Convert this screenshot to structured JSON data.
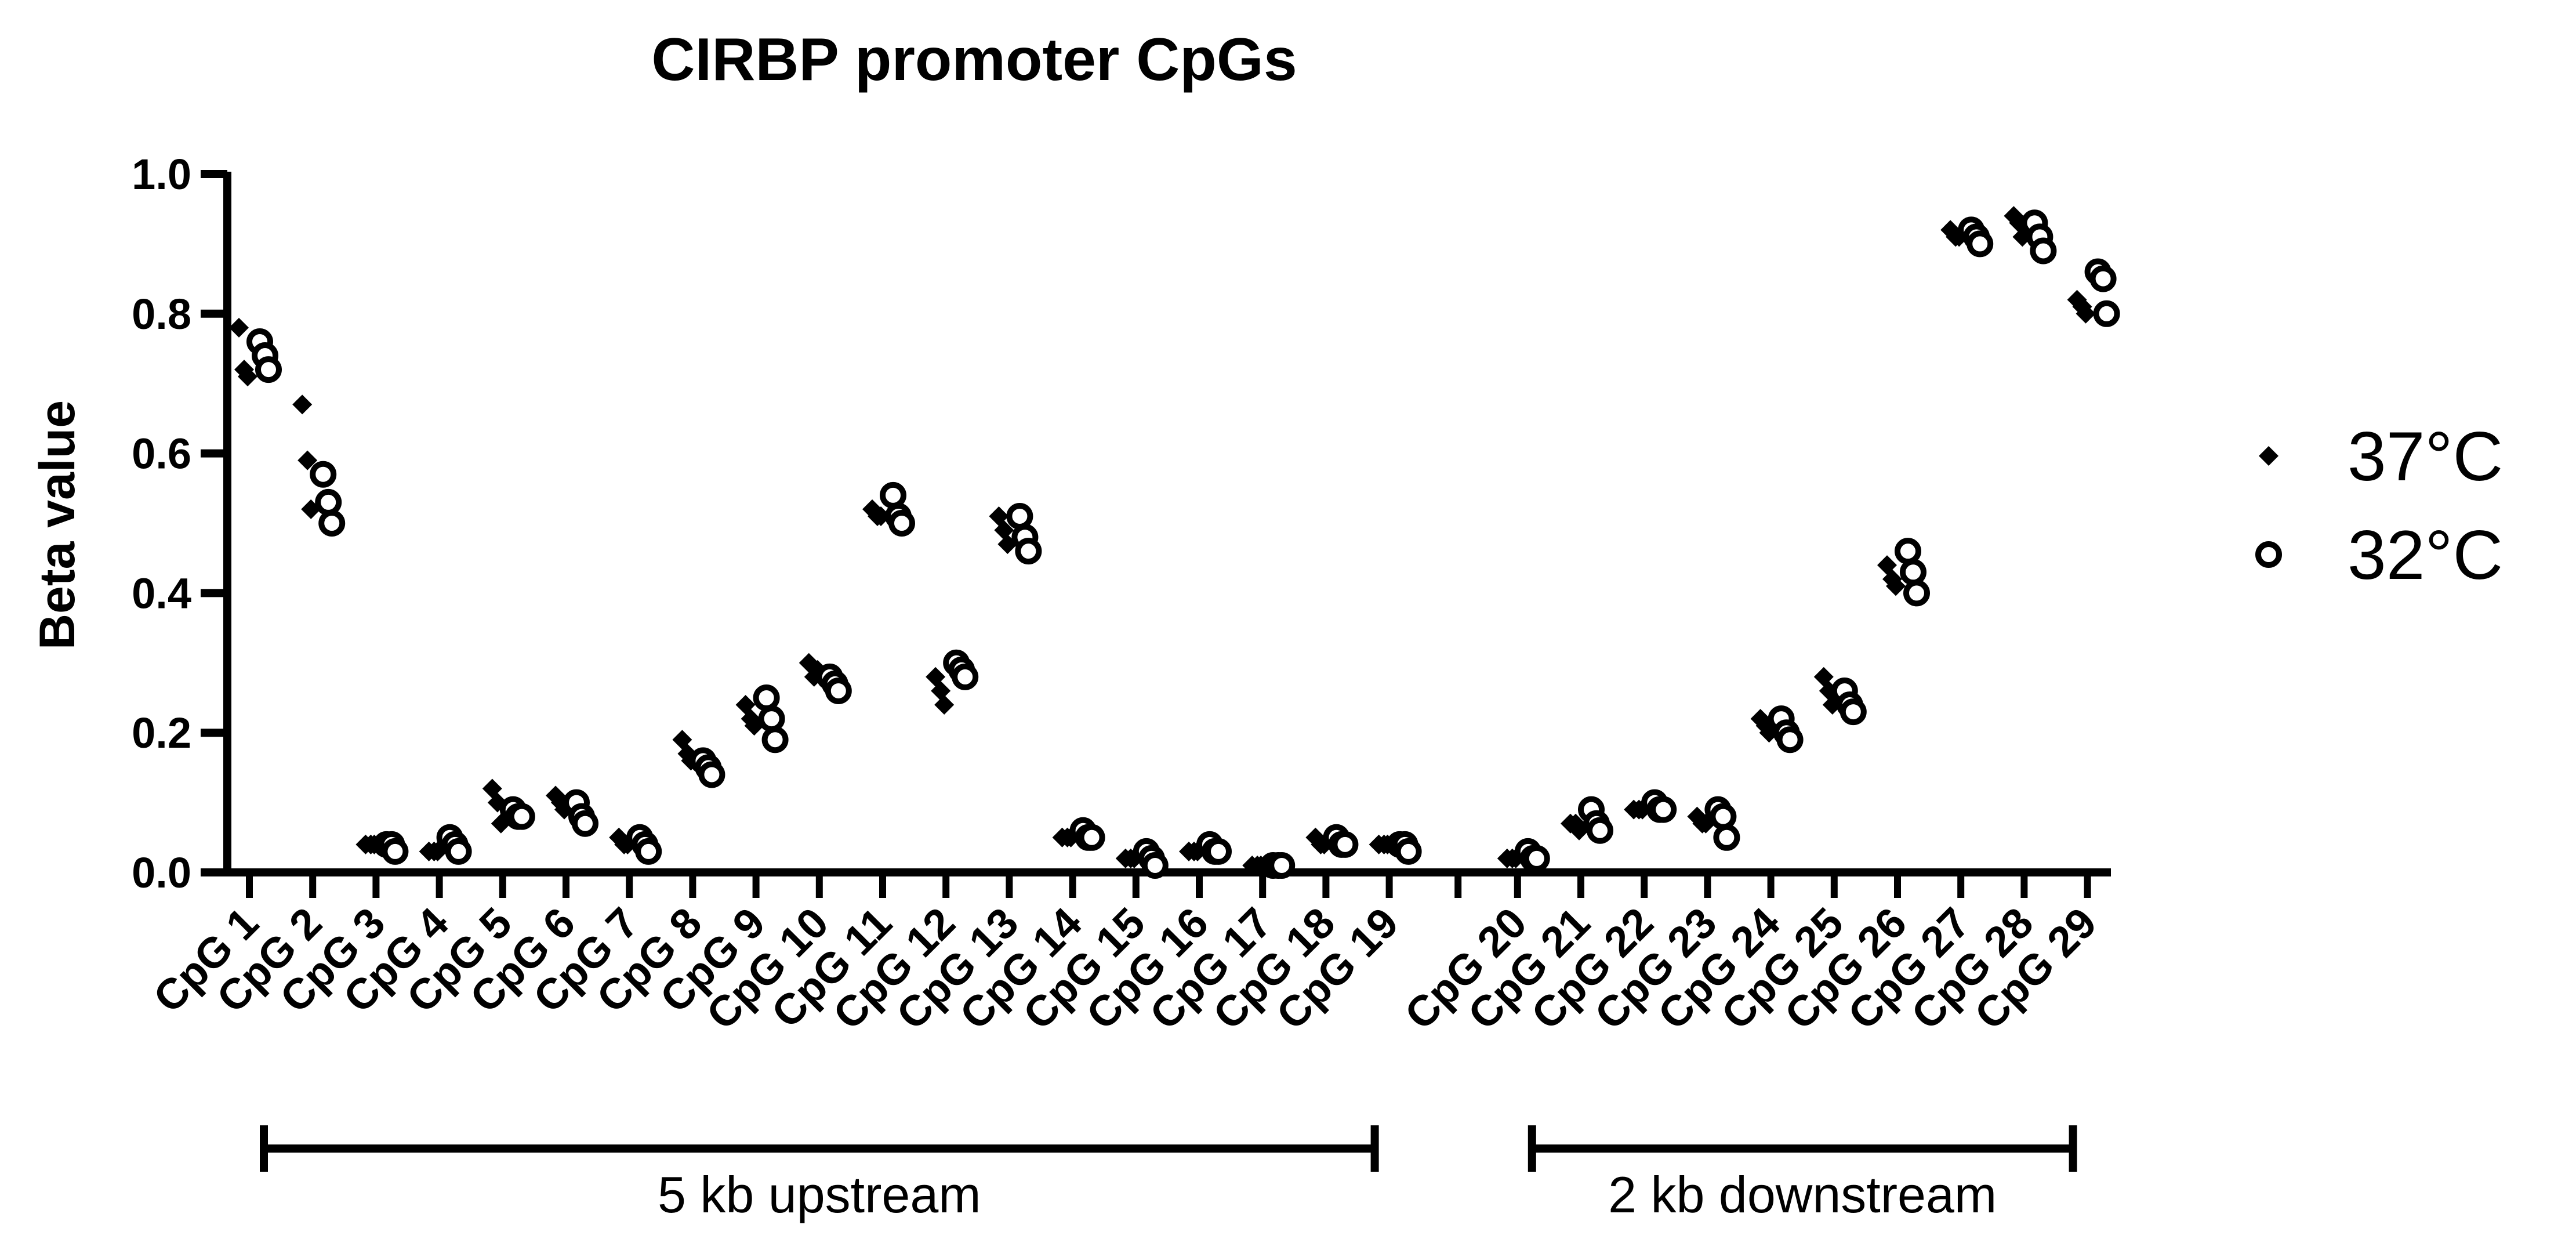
{
  "chart_data": {
    "type": "scatter",
    "title": "CIRBP promoter CpGs",
    "xlabel": "",
    "ylabel": "Beta value",
    "ylim": [
      0,
      1.0
    ],
    "yticks": [
      "0.0",
      "0.2",
      "0.4",
      "0.6",
      "0.8",
      "1.0"
    ],
    "categories": [
      "CpG 1",
      "CpG 2",
      "CpG 3",
      "CpG 4",
      "CpG 5",
      "CpG 6",
      "CpG 7",
      "CpG 8",
      "CpG 9",
      "CpG 10",
      "CpG 11",
      "CpG 12",
      "CpG 13",
      "CpG 14",
      "CpG 15",
      "CpG 16",
      "CpG 17",
      "CpG 18",
      "CpG 19",
      "CpG 20",
      "CpG 21",
      "CpG 22",
      "CpG 23",
      "CpG 24",
      "CpG 25",
      "CpG 26",
      "CpG 27",
      "CpG 28",
      "CpG 29"
    ],
    "legend_position": "right",
    "series": [
      {
        "name": "37°C",
        "marker": "diamond-filled",
        "color": "#000000",
        "values": [
          [
            0.78,
            0.72,
            0.71
          ],
          [
            0.67,
            0.59,
            0.52
          ],
          [
            0.04,
            0.04,
            0.04
          ],
          [
            0.03,
            0.03,
            0.03
          ],
          [
            0.12,
            0.1,
            0.07
          ],
          [
            0.11,
            0.1,
            0.09
          ],
          [
            0.05,
            0.04,
            0.04
          ],
          [
            0.19,
            0.17,
            0.16
          ],
          [
            0.24,
            0.22,
            0.21
          ],
          [
            0.3,
            0.28,
            0.29
          ],
          [
            0.52,
            0.51,
            0.51
          ],
          [
            0.28,
            0.26,
            0.24
          ],
          [
            0.51,
            0.49,
            0.47
          ],
          [
            0.05,
            0.05,
            0.05
          ],
          [
            0.02,
            0.02,
            0.02
          ],
          [
            0.03,
            0.03,
            0.03
          ],
          [
            0.01,
            0.01,
            0.01
          ],
          [
            0.05,
            0.04,
            0.04
          ],
          [
            0.04,
            0.04,
            0.04
          ],
          [
            0.02,
            0.02,
            0.02
          ],
          [
            0.07,
            0.07,
            0.06
          ],
          [
            0.09,
            0.09,
            0.09
          ],
          [
            0.08,
            0.07,
            0.07
          ],
          [
            0.22,
            0.21,
            0.2
          ],
          [
            0.28,
            0.26,
            0.24
          ],
          [
            0.44,
            0.42,
            0.41
          ],
          [
            0.92,
            0.91,
            0.91
          ],
          [
            0.94,
            0.93,
            0.91
          ],
          [
            0.82,
            0.81,
            0.8
          ]
        ]
      },
      {
        "name": "32°C",
        "marker": "circle-open",
        "color": "#000000",
        "values": [
          [
            0.76,
            0.74,
            0.72
          ],
          [
            0.57,
            0.53,
            0.5
          ],
          [
            0.04,
            0.04,
            0.03
          ],
          [
            0.05,
            0.04,
            0.03
          ],
          [
            0.09,
            0.08,
            0.08
          ],
          [
            0.1,
            0.08,
            0.07
          ],
          [
            0.05,
            0.04,
            0.03
          ],
          [
            0.16,
            0.15,
            0.14
          ],
          [
            0.25,
            0.22,
            0.19
          ],
          [
            0.28,
            0.27,
            0.26
          ],
          [
            0.54,
            0.51,
            0.5
          ],
          [
            0.3,
            0.29,
            0.28
          ],
          [
            0.51,
            0.48,
            0.46
          ],
          [
            0.06,
            0.05,
            0.05
          ],
          [
            0.03,
            0.02,
            0.01
          ],
          [
            0.04,
            0.03,
            0.03
          ],
          [
            0.01,
            0.01,
            0.01
          ],
          [
            0.05,
            0.04,
            0.04
          ],
          [
            0.04,
            0.04,
            0.03
          ],
          [
            0.03,
            0.02,
            0.02
          ],
          [
            0.09,
            0.07,
            0.06
          ],
          [
            0.1,
            0.09,
            0.09
          ],
          [
            0.09,
            0.08,
            0.05
          ],
          [
            0.22,
            0.2,
            0.19
          ],
          [
            0.26,
            0.24,
            0.23
          ],
          [
            0.46,
            0.43,
            0.4
          ],
          [
            0.92,
            0.91,
            0.9
          ],
          [
            0.93,
            0.91,
            0.89
          ],
          [
            0.86,
            0.85,
            0.8
          ]
        ]
      }
    ],
    "groups": [
      {
        "label": "5 kb upstream",
        "from": "CpG 1",
        "to": "CpG 19"
      },
      {
        "label": "2 kb downstream",
        "from": "CpG 20",
        "to": "CpG 29"
      }
    ]
  }
}
